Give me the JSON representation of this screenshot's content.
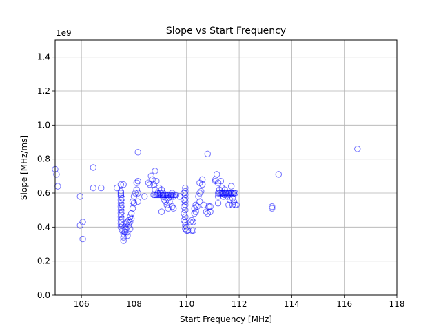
{
  "chart_data": {
    "type": "scatter",
    "title": "Slope vs Start Frequency",
    "xlabel": "Start Frequency [MHz]",
    "ylabel": "Slope [MHz/ms]",
    "y_offset_label": "1e9",
    "xlim": [
      105,
      118
    ],
    "ylim": [
      0.0,
      1.5
    ],
    "x_ticks": [
      106,
      108,
      110,
      112,
      114,
      116,
      118
    ],
    "x_tick_labels": [
      "106",
      "108",
      "110",
      "112",
      "114",
      "116",
      "118"
    ],
    "y_ticks": [
      0.0,
      0.2,
      0.4,
      0.6,
      0.8,
      1.0,
      1.2,
      1.4
    ],
    "y_tick_labels": [
      "0.0",
      "0.2",
      "0.4",
      "0.6",
      "0.8",
      "1.0",
      "1.2",
      "1.4"
    ],
    "grid": true,
    "marker": "hollow-circle",
    "marker_color": "#0000ff",
    "points": [
      [
        105.0,
        0.74
      ],
      [
        105.05,
        0.71
      ],
      [
        105.1,
        0.64
      ],
      [
        105.95,
        0.58
      ],
      [
        105.95,
        0.41
      ],
      [
        106.05,
        0.43
      ],
      [
        106.05,
        0.33
      ],
      [
        106.45,
        0.75
      ],
      [
        106.45,
        0.63
      ],
      [
        106.75,
        0.63
      ],
      [
        107.35,
        0.63
      ],
      [
        107.5,
        0.65
      ],
      [
        107.5,
        0.61
      ],
      [
        107.5,
        0.6
      ],
      [
        107.5,
        0.59
      ],
      [
        107.5,
        0.58
      ],
      [
        107.5,
        0.56
      ],
      [
        107.5,
        0.54
      ],
      [
        107.5,
        0.52
      ],
      [
        107.5,
        0.5
      ],
      [
        107.5,
        0.48
      ],
      [
        107.5,
        0.46
      ],
      [
        107.5,
        0.44
      ],
      [
        107.5,
        0.42
      ],
      [
        107.5,
        0.4
      ],
      [
        107.55,
        0.57
      ],
      [
        107.55,
        0.53
      ],
      [
        107.55,
        0.49
      ],
      [
        107.55,
        0.45
      ],
      [
        107.55,
        0.41
      ],
      [
        107.55,
        0.38
      ],
      [
        107.6,
        0.65
      ],
      [
        107.6,
        0.38
      ],
      [
        107.6,
        0.36
      ],
      [
        107.6,
        0.34
      ],
      [
        107.6,
        0.32
      ],
      [
        107.65,
        0.4
      ],
      [
        107.65,
        0.37
      ],
      [
        107.7,
        0.42
      ],
      [
        107.7,
        0.39
      ],
      [
        107.75,
        0.43
      ],
      [
        107.75,
        0.37
      ],
      [
        107.75,
        0.35
      ],
      [
        107.8,
        0.44
      ],
      [
        107.8,
        0.41
      ],
      [
        107.85,
        0.46
      ],
      [
        107.85,
        0.43
      ],
      [
        107.85,
        0.39
      ],
      [
        107.9,
        0.48
      ],
      [
        107.9,
        0.45
      ],
      [
        107.95,
        0.55
      ],
      [
        107.95,
        0.51
      ],
      [
        108.0,
        0.58
      ],
      [
        108.0,
        0.54
      ],
      [
        108.05,
        0.6
      ],
      [
        108.1,
        0.62
      ],
      [
        108.1,
        0.66
      ],
      [
        108.15,
        0.84
      ],
      [
        108.15,
        0.67
      ],
      [
        108.15,
        0.6
      ],
      [
        108.15,
        0.55
      ],
      [
        108.4,
        0.58
      ],
      [
        108.55,
        0.66
      ],
      [
        108.6,
        0.65
      ],
      [
        108.65,
        0.7
      ],
      [
        108.7,
        0.68
      ],
      [
        108.75,
        0.65
      ],
      [
        108.8,
        0.73
      ],
      [
        108.8,
        0.62
      ],
      [
        108.85,
        0.67
      ],
      [
        108.9,
        0.6
      ],
      [
        108.95,
        0.63
      ],
      [
        109.0,
        0.6
      ],
      [
        109.05,
        0.62
      ],
      [
        109.05,
        0.49
      ],
      [
        109.1,
        0.6
      ],
      [
        109.1,
        0.58
      ],
      [
        109.15,
        0.56
      ],
      [
        109.2,
        0.59
      ],
      [
        109.2,
        0.55
      ],
      [
        109.25,
        0.57
      ],
      [
        109.25,
        0.53
      ],
      [
        109.3,
        0.57
      ],
      [
        109.3,
        0.51
      ],
      [
        109.35,
        0.55
      ],
      [
        109.4,
        0.58
      ],
      [
        109.45,
        0.6
      ],
      [
        109.45,
        0.52
      ],
      [
        109.5,
        0.51
      ],
      [
        109.5,
        0.58
      ],
      [
        109.75,
        0.58
      ],
      [
        109.9,
        0.6
      ],
      [
        109.9,
        0.56
      ],
      [
        109.9,
        0.52
      ],
      [
        109.9,
        0.48
      ],
      [
        109.9,
        0.44
      ],
      [
        109.95,
        0.63
      ],
      [
        109.95,
        0.61
      ],
      [
        109.95,
        0.59
      ],
      [
        109.95,
        0.57
      ],
      [
        109.95,
        0.55
      ],
      [
        109.95,
        0.53
      ],
      [
        109.95,
        0.5
      ],
      [
        109.95,
        0.46
      ],
      [
        109.95,
        0.43
      ],
      [
        109.95,
        0.41
      ],
      [
        109.95,
        0.39
      ],
      [
        110.0,
        0.4
      ],
      [
        110.0,
        0.38
      ],
      [
        110.05,
        0.38
      ],
      [
        110.15,
        0.43
      ],
      [
        110.2,
        0.38
      ],
      [
        110.2,
        0.44
      ],
      [
        110.25,
        0.38
      ],
      [
        110.25,
        0.43
      ],
      [
        110.3,
        0.48
      ],
      [
        110.3,
        0.51
      ],
      [
        110.35,
        0.53
      ],
      [
        110.35,
        0.49
      ],
      [
        110.4,
        0.52
      ],
      [
        110.45,
        0.58
      ],
      [
        110.5,
        0.6
      ],
      [
        110.5,
        0.55
      ],
      [
        110.5,
        0.66
      ],
      [
        110.55,
        0.61
      ],
      [
        110.6,
        0.68
      ],
      [
        110.6,
        0.65
      ],
      [
        110.65,
        0.53
      ],
      [
        110.75,
        0.49
      ],
      [
        110.8,
        0.48
      ],
      [
        110.8,
        0.83
      ],
      [
        110.85,
        0.52
      ],
      [
        110.9,
        0.49
      ],
      [
        110.9,
        0.52
      ],
      [
        111.1,
        0.68
      ],
      [
        111.1,
        0.67
      ],
      [
        111.15,
        0.71
      ],
      [
        111.2,
        0.66
      ],
      [
        111.2,
        0.58
      ],
      [
        111.2,
        0.54
      ],
      [
        111.25,
        0.62
      ],
      [
        111.3,
        0.67
      ],
      [
        111.35,
        0.63
      ],
      [
        111.35,
        0.6
      ],
      [
        111.4,
        0.58
      ],
      [
        111.45,
        0.62
      ],
      [
        111.45,
        0.59
      ],
      [
        111.5,
        0.6
      ],
      [
        111.55,
        0.58
      ],
      [
        111.6,
        0.6
      ],
      [
        111.6,
        0.53
      ],
      [
        111.65,
        0.56
      ],
      [
        111.7,
        0.64
      ],
      [
        111.7,
        0.6
      ],
      [
        111.75,
        0.53
      ],
      [
        111.75,
        0.57
      ],
      [
        111.8,
        0.6
      ],
      [
        111.8,
        0.55
      ],
      [
        111.85,
        0.53
      ],
      [
        111.9,
        0.53
      ],
      [
        113.25,
        0.52
      ],
      [
        113.25,
        0.51
      ],
      [
        113.5,
        0.71
      ],
      [
        116.5,
        0.86
      ]
    ],
    "flat_segments": [
      {
        "x_start": 108.75,
        "x_end": 109.6,
        "y": 0.59
      },
      {
        "x_start": 111.2,
        "x_end": 111.85,
        "y": 0.6
      }
    ]
  }
}
